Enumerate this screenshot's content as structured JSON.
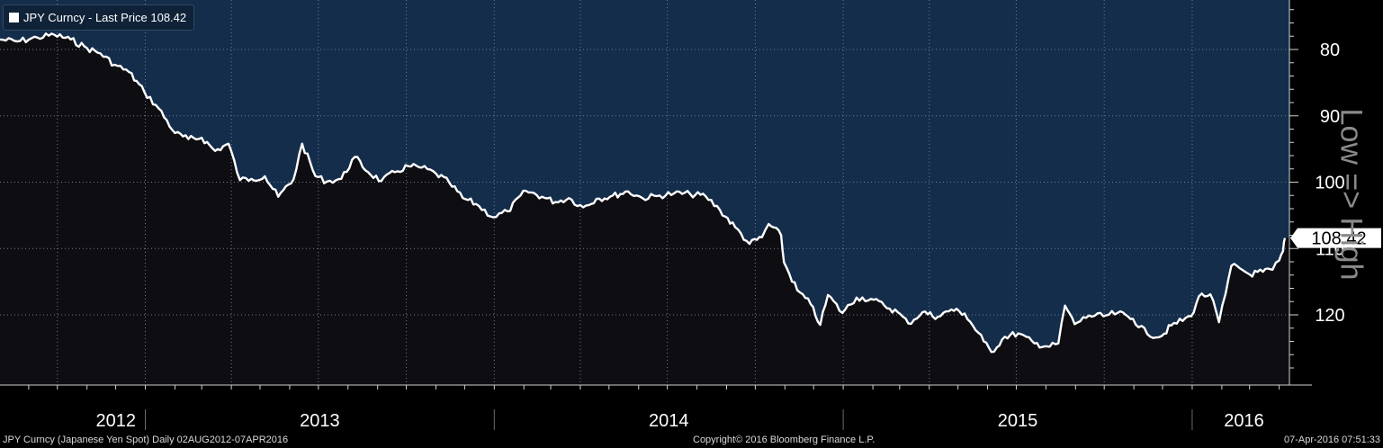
{
  "legend": {
    "label": "JPY Curncy - Last Price 108.42",
    "swatch_color": "#ffffff"
  },
  "side_label": "Low => High",
  "footer": {
    "left": "JPY Curncy (Japanese Yen Spot)  Daily 02AUG2012-07APR2016",
    "center": "Copyright© 2016 Bloomberg Finance L.P.",
    "right": "07-Apr-2016 07:51:33"
  },
  "colors": {
    "fill_above": "#142d4b",
    "fill_below": "#0e0e12",
    "line": "#ffffff",
    "grid": "#6e7c8c"
  },
  "chart_data": {
    "type": "line",
    "title": "JPY Curncy - Last Price 108.42",
    "xlabel": "",
    "ylabel": "",
    "y_inverted": true,
    "ylim": [
      73,
      128
    ],
    "xlim": [
      "2012-08-02",
      "2016-04-07"
    ],
    "y_ticks": [
      80,
      90,
      100,
      110,
      120
    ],
    "x_tick_labels": [
      "2012",
      "2013",
      "2014",
      "2015",
      "2016"
    ],
    "last_price_label": "108.42",
    "grid": true,
    "series": [
      {
        "name": "JPY Curncy - Last Price",
        "points": [
          [
            "2012-08-02",
            78.5
          ],
          [
            "2012-08-20",
            78.8
          ],
          [
            "2012-09-10",
            78.2
          ],
          [
            "2012-09-28",
            77.8
          ],
          [
            "2012-10-15",
            78.5
          ],
          [
            "2012-11-01",
            79.8
          ],
          [
            "2012-11-15",
            80.6
          ],
          [
            "2012-11-30",
            82.3
          ],
          [
            "2012-12-15",
            83.4
          ],
          [
            "2012-12-31",
            86.4
          ],
          [
            "2013-01-15",
            88.9
          ],
          [
            "2013-02-01",
            92.6
          ],
          [
            "2013-02-15",
            93.5
          ],
          [
            "2013-03-01",
            93.3
          ],
          [
            "2013-03-15",
            95.3
          ],
          [
            "2013-03-29",
            94.2
          ],
          [
            "2013-04-10",
            99.7
          ],
          [
            "2013-04-22",
            99.5
          ],
          [
            "2013-05-06",
            99.1
          ],
          [
            "2013-05-20",
            102.2
          ],
          [
            "2013-06-05",
            99.6
          ],
          [
            "2013-06-14",
            94.2
          ],
          [
            "2013-06-28",
            99.1
          ],
          [
            "2013-07-10",
            99.9
          ],
          [
            "2013-07-25",
            99.5
          ],
          [
            "2013-08-08",
            96.2
          ],
          [
            "2013-08-22",
            98.5
          ],
          [
            "2013-09-05",
            99.8
          ],
          [
            "2013-09-19",
            98.5
          ],
          [
            "2013-10-03",
            97.6
          ],
          [
            "2013-10-17",
            97.8
          ],
          [
            "2013-11-01",
            98.7
          ],
          [
            "2013-11-15",
            100.1
          ],
          [
            "2013-11-29",
            102.4
          ],
          [
            "2013-12-13",
            103.3
          ],
          [
            "2013-12-31",
            105.3
          ],
          [
            "2014-01-15",
            104.4
          ],
          [
            "2014-02-03",
            101.3
          ],
          [
            "2014-02-20",
            102.2
          ],
          [
            "2014-03-06",
            103.0
          ],
          [
            "2014-03-20",
            102.4
          ],
          [
            "2014-04-04",
            103.8
          ],
          [
            "2014-04-18",
            102.5
          ],
          [
            "2014-05-02",
            102.2
          ],
          [
            "2014-05-21",
            101.4
          ],
          [
            "2014-06-05",
            102.4
          ],
          [
            "2014-06-20",
            102.1
          ],
          [
            "2014-07-08",
            101.7
          ],
          [
            "2014-07-25",
            101.8
          ],
          [
            "2014-08-10",
            102.1
          ],
          [
            "2014-08-25",
            104.2
          ],
          [
            "2014-09-10",
            106.8
          ],
          [
            "2014-09-25",
            109.3
          ],
          [
            "2014-10-08",
            108.3
          ],
          [
            "2014-10-15",
            106.3
          ],
          [
            "2014-10-28",
            108.0
          ],
          [
            "2014-10-31",
            112.1
          ],
          [
            "2014-11-14",
            116.3
          ],
          [
            "2014-11-28",
            118.4
          ],
          [
            "2014-12-08",
            121.5
          ],
          [
            "2014-12-16",
            117.0
          ],
          [
            "2014-12-31",
            119.7
          ],
          [
            "2015-01-15",
            117.4
          ],
          [
            "2015-01-30",
            117.6
          ],
          [
            "2015-02-13",
            118.6
          ],
          [
            "2015-02-27",
            119.6
          ],
          [
            "2015-03-10",
            121.3
          ],
          [
            "2015-03-25",
            119.6
          ],
          [
            "2015-04-10",
            120.3
          ],
          [
            "2015-04-24",
            119.2
          ],
          [
            "2015-05-08",
            119.8
          ],
          [
            "2015-05-28",
            124.0
          ],
          [
            "2015-06-05",
            125.6
          ],
          [
            "2015-06-19",
            123.3
          ],
          [
            "2015-07-03",
            122.8
          ],
          [
            "2015-07-20",
            124.3
          ],
          [
            "2015-08-05",
            124.8
          ],
          [
            "2015-08-14",
            124.3
          ],
          [
            "2015-08-21",
            118.6
          ],
          [
            "2015-08-31",
            121.4
          ],
          [
            "2015-09-15",
            120.1
          ],
          [
            "2015-09-30",
            120.2
          ],
          [
            "2015-10-15",
            119.7
          ],
          [
            "2015-10-31",
            120.6
          ],
          [
            "2015-11-15",
            122.9
          ],
          [
            "2015-11-30",
            123.2
          ],
          [
            "2015-12-10",
            121.6
          ],
          [
            "2015-12-31",
            120.2
          ],
          [
            "2016-01-08",
            117.2
          ],
          [
            "2016-01-20",
            116.9
          ],
          [
            "2016-01-29",
            121.1
          ],
          [
            "2016-02-05",
            116.8
          ],
          [
            "2016-02-11",
            112.6
          ],
          [
            "2016-02-20",
            113.0
          ],
          [
            "2016-03-01",
            113.9
          ],
          [
            "2016-03-15",
            113.5
          ],
          [
            "2016-03-25",
            113.2
          ],
          [
            "2016-04-01",
            111.8
          ],
          [
            "2016-04-05",
            110.4
          ],
          [
            "2016-04-07",
            108.42
          ]
        ]
      }
    ]
  }
}
